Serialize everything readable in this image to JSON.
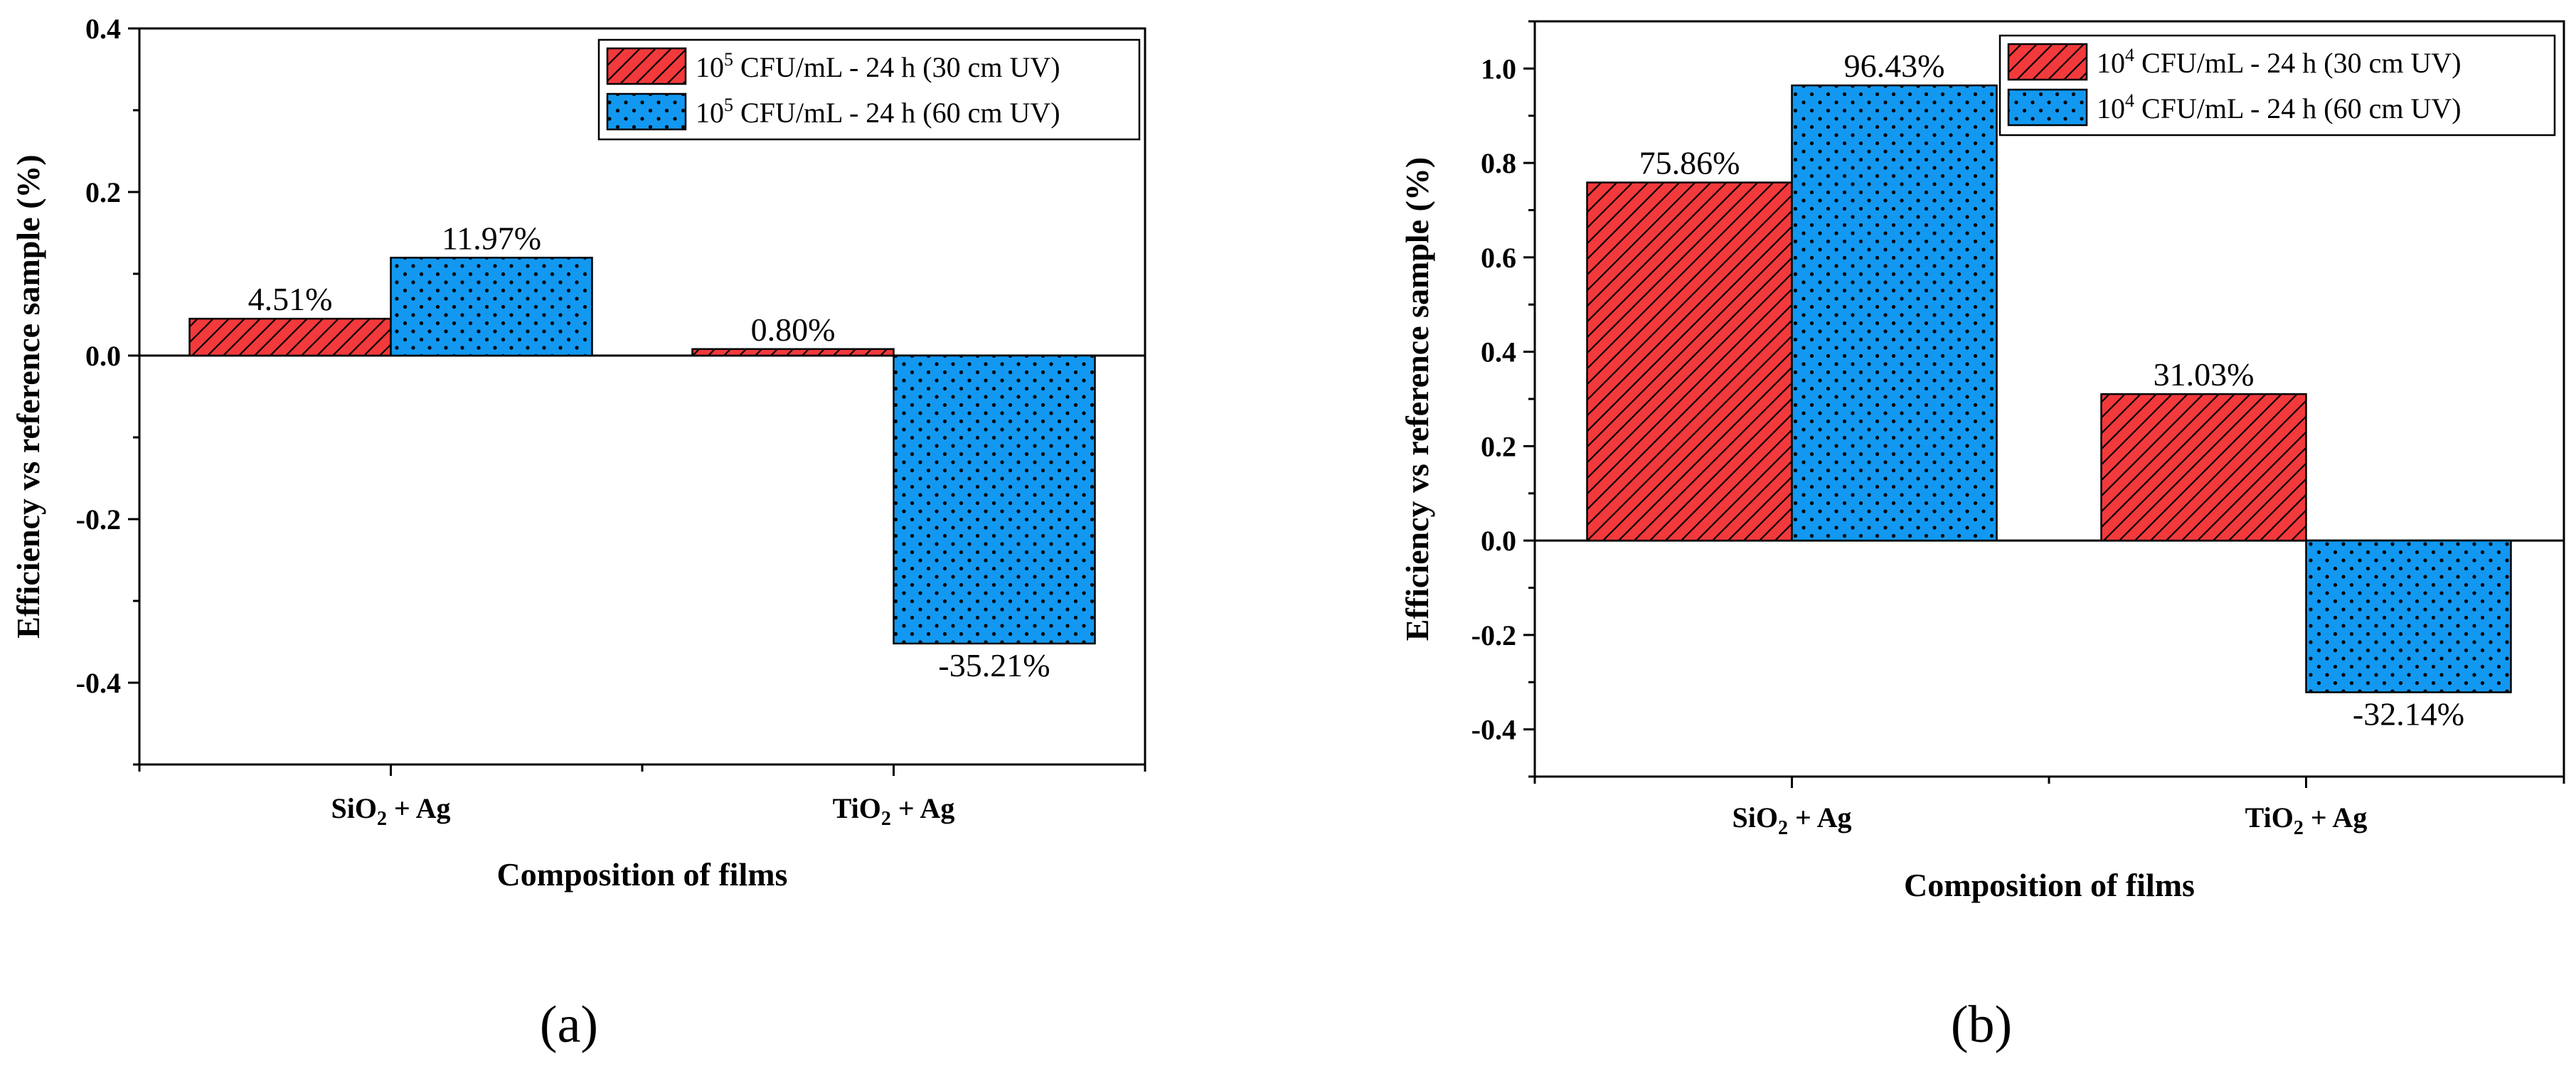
{
  "chart_data": [
    {
      "type": "bar",
      "panel_label": "(a)",
      "categories": [
        "SiO2 + Ag",
        "TiO2 + Ag"
      ],
      "category_labels": [
        {
          "base": "SiO",
          "sub": "2",
          "rest": " + Ag"
        },
        {
          "base": "TiO",
          "sub": "2",
          "rest": " + Ag"
        }
      ],
      "series": [
        {
          "name": "10^5 CFU/mL - 24 h (30 cm UV)",
          "legend": {
            "pre": "10",
            "sup": "5",
            "post": " CFU/mL - 24 h (30 cm UV)"
          },
          "values": [
            0.0451,
            0.008
          ],
          "labels": [
            "4.51%",
            "0.80%"
          ],
          "color": "#f2393b",
          "pattern": "hatch"
        },
        {
          "name": "10^5 CFU/mL - 24 h (60 cm UV)",
          "legend": {
            "pre": "10",
            "sup": "5",
            "post": " CFU/mL - 24 h (60 cm UV)"
          },
          "values": [
            0.1197,
            -0.3521
          ],
          "labels": [
            "11.97%",
            "-35.21%"
          ],
          "color": "#1298f0",
          "pattern": "dots"
        }
      ],
      "xlabel": "Composition of films",
      "ylabel": "Efficiency vs reference sample (%)",
      "ylim": [
        -0.5,
        0.4
      ],
      "yticks": [
        -0.4,
        -0.2,
        0.0,
        0.2,
        0.4
      ],
      "ytick_labels": [
        "-0.4",
        "-0.2",
        "0.0",
        "0.2",
        "0.4"
      ],
      "legend_position": "top-right"
    },
    {
      "type": "bar",
      "panel_label": "(b)",
      "categories": [
        "SiO2 + Ag",
        "TiO2 + Ag"
      ],
      "category_labels": [
        {
          "base": "SiO",
          "sub": "2",
          "rest": " + Ag"
        },
        {
          "base": "TiO",
          "sub": "2",
          "rest": " + Ag"
        }
      ],
      "series": [
        {
          "name": "10^4 CFU/mL - 24 h (30 cm UV)",
          "legend": {
            "pre": "10",
            "sup": "4",
            "post": " CFU/mL - 24 h (30 cm UV)"
          },
          "values": [
            0.7586,
            0.3103
          ],
          "labels": [
            "75.86%",
            "31.03%"
          ],
          "color": "#f2393b",
          "pattern": "hatch"
        },
        {
          "name": "10^4 CFU/mL - 24 h (60 cm UV)",
          "legend": {
            "pre": "10",
            "sup": "4",
            "post": " CFU/mL - 24 h (60 cm UV)"
          },
          "values": [
            0.9643,
            -0.3214
          ],
          "labels": [
            "96.43%",
            "-32.14%"
          ],
          "color": "#1298f0",
          "pattern": "dots"
        }
      ],
      "xlabel": "Composition of films",
      "ylabel": "Efficiency vs reference sample (%)",
      "ylim": [
        -0.5,
        1.1
      ],
      "yticks": [
        -0.4,
        -0.2,
        0.0,
        0.2,
        0.4,
        0.6,
        0.8,
        1.0
      ],
      "ytick_labels": [
        "-0.4",
        "-0.2",
        "0.0",
        "0.2",
        "0.4",
        "0.6",
        "0.8",
        "1.0"
      ],
      "legend_position": "top-right"
    }
  ]
}
